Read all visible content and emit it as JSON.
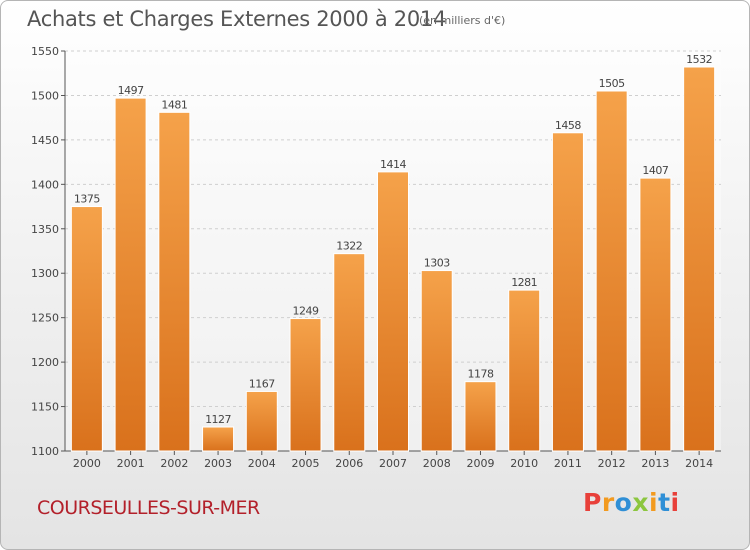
{
  "header": {
    "title": "Achats et Charges Externes 2000 à 2014",
    "subtitle": "(en milliers d'€)"
  },
  "footer": {
    "city": "COURSEULLES-SUR-MER",
    "logo_text": "Proxiti"
  },
  "colors": {
    "bar_light": "#f5a24a",
    "bar_dark": "#d9711c",
    "city": "#b3202a",
    "logo": [
      "#e8403a",
      "#f29a1f",
      "#2f8fd6",
      "#8cc63f",
      "#f29a1f",
      "#2f8fd6",
      "#e8403a"
    ]
  },
  "chart_data": {
    "type": "bar",
    "title": "Achats et Charges Externes 2000 à 2014",
    "subtitle": "(en milliers d'€)",
    "xlabel": "",
    "ylabel": "",
    "categories": [
      "2000",
      "2001",
      "2002",
      "2003",
      "2004",
      "2005",
      "2006",
      "2007",
      "2008",
      "2009",
      "2010",
      "2011",
      "2012",
      "2013",
      "2014"
    ],
    "values": [
      1375,
      1497,
      1481,
      1127,
      1167,
      1249,
      1322,
      1414,
      1303,
      1178,
      1281,
      1458,
      1505,
      1407,
      1532
    ],
    "ylim": [
      1100,
      1550
    ],
    "yticks": [
      1100,
      1150,
      1200,
      1250,
      1300,
      1350,
      1400,
      1450,
      1500,
      1550
    ],
    "grid": true,
    "legend": "none"
  }
}
